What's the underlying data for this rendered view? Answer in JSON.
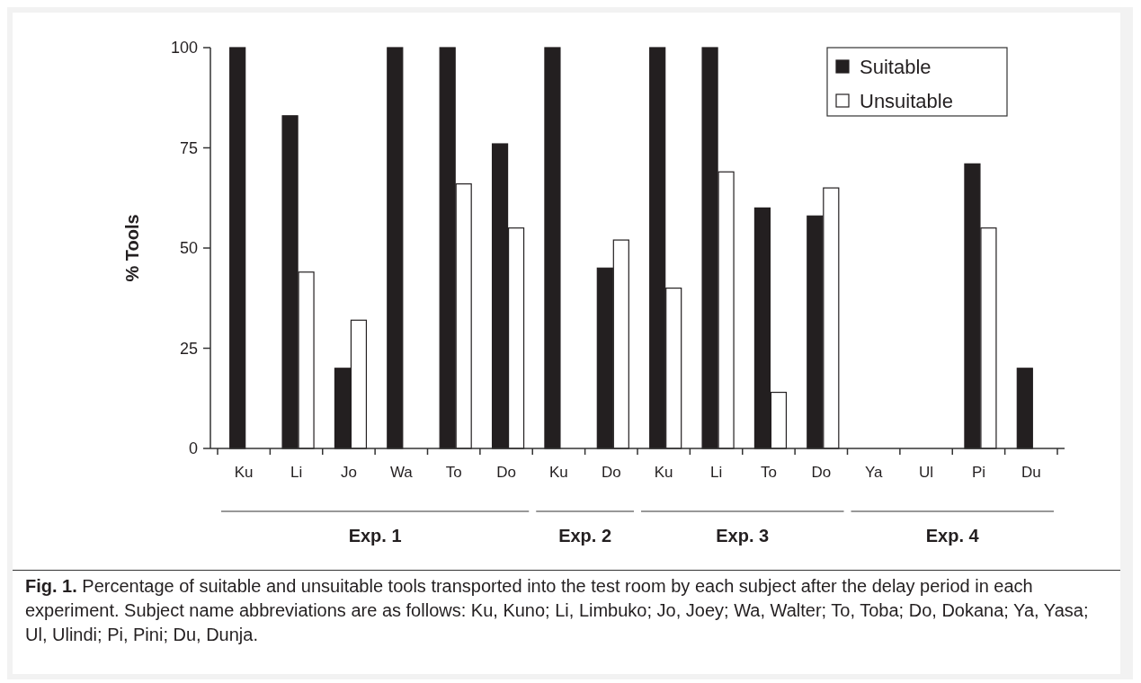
{
  "chart_data": {
    "type": "bar",
    "categories": [
      "Ku",
      "Li",
      "Jo",
      "Wa",
      "To",
      "Do",
      "Ku",
      "Do",
      "Ku",
      "Li",
      "To",
      "Do",
      "Ya",
      "Ul",
      "Pi",
      "Du"
    ],
    "series": [
      {
        "name": "Suitable",
        "color": "#231f20",
        "values": [
          100,
          83,
          20,
          100,
          100,
          76,
          100,
          45,
          100,
          100,
          60,
          58,
          0,
          0,
          71,
          20
        ]
      },
      {
        "name": "Unsuitable",
        "color": "#ffffff",
        "values": [
          0,
          44,
          32,
          0,
          66,
          55,
          0,
          52,
          40,
          69,
          14,
          65,
          0,
          0,
          55,
          0
        ]
      }
    ],
    "ylabel": "% Tools",
    "ylim": [
      0,
      100
    ],
    "yticks": [
      0,
      25,
      50,
      75,
      100
    ],
    "legend": "top right",
    "grid": false,
    "annotations": [
      "Exp. 1",
      "Exp. 2",
      "Exp. 3",
      "Exp. 4",
      "Fig. 1. Percentage of suitable and unsuitable tools transported into the test room by each subject after the delay period in each experiment. Subject name abbreviations are as follows: Ku, Kuno; Li, Limbuko; Jo, Joey; Wa, Walter; To, Toba; Do, Dokana; Ya, Yasa; Ul, Ulindi; Pi, Pini; Du, Dunja."
    ]
  }
}
